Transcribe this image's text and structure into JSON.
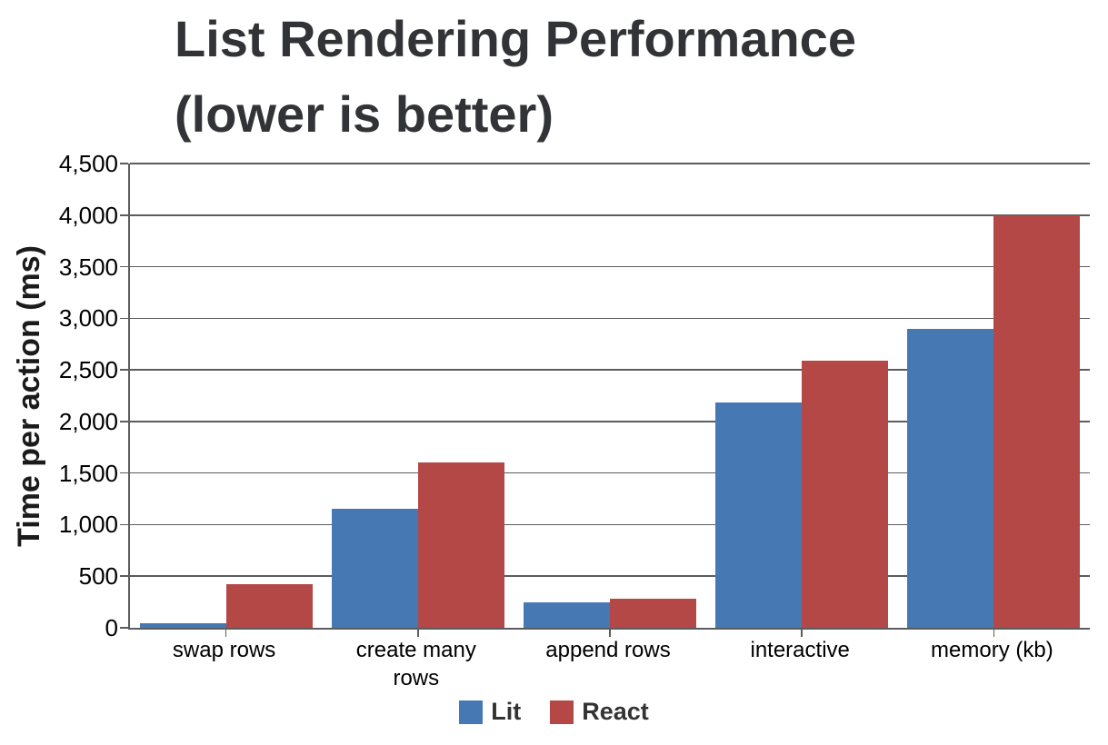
{
  "title": {
    "line1": "List Rendering Performance",
    "line2": "(lower is better)"
  },
  "chart_data": {
    "type": "bar",
    "title": "List Rendering Performance (lower is better)",
    "categories": [
      "swap rows",
      "create many rows",
      "append rows",
      "interactive",
      "memory (kb)"
    ],
    "series": [
      {
        "name": "Lit",
        "color": "#4678b4",
        "values": [
          40,
          1150,
          250,
          2180,
          2900
        ]
      },
      {
        "name": "React",
        "color": "#b44846",
        "values": [
          420,
          1600,
          280,
          2590,
          4000
        ]
      }
    ],
    "xlabel": "",
    "ylabel": "Time per action (ms)",
    "ylim": [
      0,
      4500
    ],
    "ytick_step": 500,
    "ytick_labels": [
      "0",
      "500",
      "1,000",
      "1,500",
      "2,000",
      "2,500",
      "3,000",
      "3,500",
      "4,000",
      "4,500"
    ],
    "grid": true,
    "legend_position": "bottom"
  },
  "colors": {
    "lit": "#4678b4",
    "react": "#b44846",
    "gridline": "#5b5c5e",
    "title_text": "#323336",
    "axis_text": "#000000",
    "legend_text": "#333333"
  }
}
